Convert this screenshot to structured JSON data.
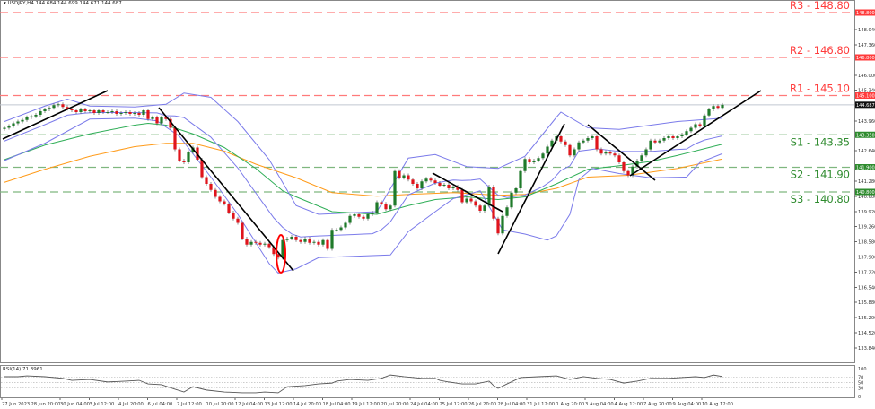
{
  "header": {
    "symbol_info": "▾ USDJPY,H4  144.684 144.699 144.671 144.687"
  },
  "rsi_panel": {
    "label": "RSI(14) 71.3961"
  },
  "colors": {
    "bull": "#1f7a2a",
    "bear": "#e0141c",
    "resistance": "#ff3b3b",
    "support": "#2e8b2e",
    "ma_fast": "#2fae57",
    "ma_slow": "#ff9b1a",
    "bollinger": "#7b7bea",
    "trendline": "#000000",
    "highlight": "#ff0000"
  },
  "chart_data": {
    "type": "candlestick",
    "title": "USDJPY,H4",
    "last_price": 144.687,
    "ylim": [
      133.18,
      148.9
    ],
    "y_ticks": [
      148.04,
      147.36,
      146.0,
      145.34,
      143.96,
      142.64,
      141.28,
      140.6,
      139.92,
      139.26,
      138.58,
      137.9,
      137.22,
      136.54,
      135.88,
      135.2,
      134.52,
      133.84,
      133.18
    ],
    "x_labels": [
      "27 Jun 2023",
      "28 Jun 20:00",
      "30 Jun 04:00",
      "3 Jul 12:00",
      "4 Jul 20:00",
      "6 Jul 04:00",
      "7 Jul 12:00",
      "10 Jul 20:00",
      "12 Jul 04:00",
      "13 Jul 12:00",
      "14 Jul 20:00",
      "18 Jul 04:00",
      "19 Jul 12:00",
      "20 Jul 20:00",
      "24 Jul 04:00",
      "25 Jul 12:00",
      "26 Jul 20:00",
      "28 Jul 04:00",
      "31 Jul 12:00",
      "1 Aug 20:00",
      "3 Aug 04:00",
      "4 Aug 12:00",
      "7 Aug 20:00",
      "9 Aug 04:00",
      "10 Aug 12:00"
    ],
    "closes": [
      143.66,
      143.74,
      143.86,
      143.94,
      144.01,
      144.13,
      144.17,
      144.24,
      144.4,
      144.48,
      144.55,
      144.67,
      144.71,
      144.59,
      144.51,
      144.44,
      144.36,
      144.48,
      144.4,
      144.44,
      144.32,
      144.44,
      144.36,
      144.36,
      144.4,
      144.28,
      144.32,
      144.36,
      144.28,
      144.32,
      144.24,
      144.44,
      144.05,
      144.13,
      143.86,
      144.13,
      144.05,
      143.66,
      142.7,
      142.2,
      142.12,
      142.58,
      142.78,
      142.24,
      141.46,
      141.16,
      140.89,
      140.58,
      140.38,
      140.27,
      139.88,
      139.61,
      139.42,
      138.72,
      138.45,
      138.57,
      138.53,
      138.45,
      138.49,
      138.34,
      138.03,
      137.87,
      138.65,
      138.72,
      138.8,
      138.65,
      138.57,
      138.72,
      138.53,
      138.57,
      138.45,
      138.65,
      138.26,
      139.11,
      139.11,
      139.22,
      139.42,
      139.73,
      139.8,
      139.69,
      139.61,
      139.8,
      139.88,
      140.34,
      140.27,
      140.03,
      140.19,
      141.73,
      141.43,
      141.54,
      141.35,
      141.16,
      140.96,
      141.27,
      141.39,
      141.31,
      141.2,
      141.08,
      141.12,
      140.96,
      141.04,
      140.89,
      140.34,
      140.5,
      140.38,
      140.19,
      139.96,
      140.19,
      141.04,
      139.61,
      138.95,
      139.73,
      140.11,
      140.77,
      140.96,
      141.73,
      142.27,
      142.12,
      142.2,
      142.31,
      142.51,
      142.82,
      143.09,
      143.28,
      143.05,
      142.89,
      142.43,
      142.7,
      143.01,
      143.09,
      143.2,
      143.28,
      142.7,
      142.51,
      142.58,
      142.51,
      142.43,
      142.12,
      141.73,
      141.54,
      141.93,
      142.2,
      142.43,
      142.7,
      143.09,
      143.01,
      143.09,
      143.2,
      143.28,
      143.2,
      143.28,
      143.36,
      143.51,
      143.66,
      143.82,
      143.74,
      144.21,
      144.48,
      144.63,
      144.55,
      144.687
    ],
    "levels": [
      {
        "label": "R3 - 148.80",
        "value": 148.8,
        "badge": "148.800",
        "kind": "resistance"
      },
      {
        "label": "R2 - 146.80",
        "value": 146.8,
        "badge": "146.800",
        "kind": "resistance"
      },
      {
        "label": "R1 - 145.10",
        "value": 145.1,
        "badge": "145.100",
        "kind": "resistance"
      },
      {
        "label": "S1 - 143.35",
        "value": 143.35,
        "badge": "143.350",
        "kind": "support"
      },
      {
        "label": "S2 - 141.90",
        "value": 141.9,
        "badge": "141.900",
        "kind": "support"
      },
      {
        "label": "S3 - 140.80",
        "value": 140.8,
        "badge": "140.800",
        "kind": "support"
      }
    ],
    "last_price_badge": "144.687",
    "ma_fast": [
      [
        0,
        142.24
      ],
      [
        9,
        142.89
      ],
      [
        19,
        143.39
      ],
      [
        29,
        143.78
      ],
      [
        32,
        143.86
      ],
      [
        36,
        143.78
      ],
      [
        42,
        143.39
      ],
      [
        49,
        142.78
      ],
      [
        56,
        141.85
      ],
      [
        62,
        140.85
      ],
      [
        65,
        140.58
      ],
      [
        73,
        139.92
      ],
      [
        83,
        139.8
      ],
      [
        90,
        140.19
      ],
      [
        96,
        140.46
      ],
      [
        103,
        140.58
      ],
      [
        110,
        140.46
      ],
      [
        116,
        140.58
      ],
      [
        123,
        141.16
      ],
      [
        130,
        141.81
      ],
      [
        137,
        141.97
      ],
      [
        144,
        142.16
      ],
      [
        150,
        142.43
      ],
      [
        160,
        142.93
      ]
    ],
    "ma_slow": [
      [
        0,
        141.23
      ],
      [
        9,
        141.81
      ],
      [
        19,
        142.39
      ],
      [
        29,
        142.82
      ],
      [
        36,
        142.97
      ],
      [
        42,
        142.97
      ],
      [
        49,
        142.62
      ],
      [
        56,
        142.04
      ],
      [
        65,
        141.43
      ],
      [
        73,
        140.77
      ],
      [
        83,
        140.61
      ],
      [
        90,
        140.69
      ],
      [
        100,
        140.77
      ],
      [
        110,
        140.65
      ],
      [
        116,
        140.69
      ],
      [
        123,
        140.96
      ],
      [
        130,
        141.46
      ],
      [
        139,
        141.54
      ],
      [
        150,
        141.85
      ],
      [
        160,
        142.27
      ]
    ],
    "bollinger_upper": [
      [
        0,
        143.94
      ],
      [
        9,
        144.63
      ],
      [
        14,
        144.94
      ],
      [
        19,
        144.63
      ],
      [
        29,
        144.59
      ],
      [
        36,
        144.71
      ],
      [
        40,
        145.21
      ],
      [
        46,
        145.02
      ],
      [
        52,
        143.94
      ],
      [
        59,
        142.24
      ],
      [
        65,
        140.19
      ],
      [
        70,
        139.8
      ],
      [
        83,
        139.92
      ],
      [
        90,
        142.31
      ],
      [
        96,
        142.47
      ],
      [
        103,
        141.93
      ],
      [
        110,
        141.85
      ],
      [
        116,
        142.39
      ],
      [
        123,
        144.13
      ],
      [
        124,
        144.36
      ],
      [
        130,
        143.66
      ],
      [
        137,
        143.59
      ],
      [
        150,
        143.94
      ],
      [
        160,
        144.09
      ]
    ],
    "bollinger_lower": [
      [
        0,
        142.2
      ],
      [
        9,
        142.97
      ],
      [
        19,
        144.05
      ],
      [
        29,
        144.09
      ],
      [
        34,
        143.97
      ],
      [
        39,
        143.28
      ],
      [
        46,
        141.46
      ],
      [
        52,
        139.8
      ],
      [
        59,
        137.6
      ],
      [
        61,
        137.18
      ],
      [
        65,
        137.37
      ],
      [
        70,
        137.87
      ],
      [
        86,
        137.99
      ],
      [
        90,
        139.03
      ],
      [
        96,
        139.92
      ],
      [
        100,
        140.5
      ],
      [
        106,
        140.85
      ],
      [
        111,
        139.11
      ],
      [
        116,
        138.92
      ],
      [
        121,
        138.65
      ],
      [
        123,
        138.84
      ],
      [
        126,
        139.8
      ],
      [
        128,
        141.35
      ],
      [
        131,
        141.85
      ],
      [
        137,
        141.62
      ],
      [
        144,
        141.43
      ],
      [
        152,
        141.46
      ],
      [
        155,
        142.12
      ],
      [
        160,
        142.51
      ]
    ],
    "rsi": {
      "period": 14,
      "levels_axis": [
        "100",
        "70",
        "50",
        "30",
        "0"
      ],
      "values": [
        [
          0,
          71
        ],
        [
          3,
          71
        ],
        [
          5,
          74
        ],
        [
          9,
          71
        ],
        [
          13,
          65
        ],
        [
          15,
          58
        ],
        [
          19,
          61
        ],
        [
          23,
          52
        ],
        [
          27,
          55
        ],
        [
          30,
          58
        ],
        [
          32,
          45
        ],
        [
          35,
          42
        ],
        [
          38,
          26
        ],
        [
          40,
          16
        ],
        [
          42,
          35
        ],
        [
          45,
          23
        ],
        [
          49,
          16
        ],
        [
          53,
          13
        ],
        [
          56,
          13
        ],
        [
          58,
          16
        ],
        [
          61,
          13
        ],
        [
          63,
          35
        ],
        [
          67,
          39
        ],
        [
          70,
          45
        ],
        [
          73,
          48
        ],
        [
          74,
          55
        ],
        [
          77,
          61
        ],
        [
          81,
          58
        ],
        [
          84,
          65
        ],
        [
          86,
          77
        ],
        [
          89,
          71
        ],
        [
          93,
          65
        ],
        [
          96,
          65
        ],
        [
          97,
          58
        ],
        [
          99,
          52
        ],
        [
          102,
          45
        ],
        [
          105,
          45
        ],
        [
          108,
          55
        ],
        [
          109,
          39
        ],
        [
          110,
          29
        ],
        [
          112,
          45
        ],
        [
          115,
          68
        ],
        [
          119,
          71
        ],
        [
          123,
          74
        ],
        [
          126,
          61
        ],
        [
          129,
          71
        ],
        [
          132,
          65
        ],
        [
          135,
          61
        ],
        [
          138,
          48
        ],
        [
          141,
          55
        ],
        [
          144,
          65
        ],
        [
          148,
          65
        ],
        [
          151,
          68
        ],
        [
          154,
          71
        ],
        [
          156,
          68
        ],
        [
          158,
          77
        ],
        [
          160,
          71.4
        ]
      ]
    }
  }
}
